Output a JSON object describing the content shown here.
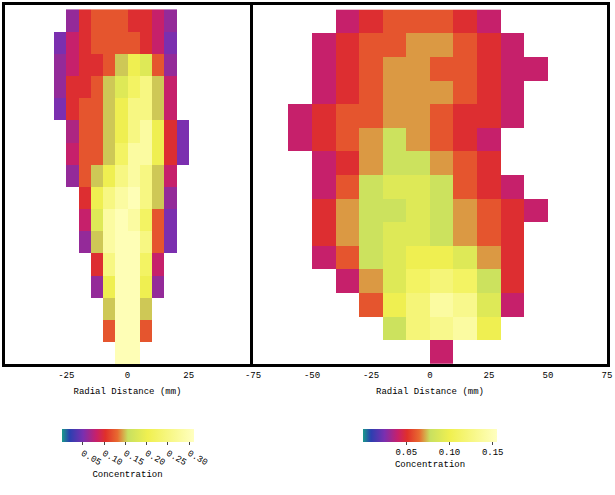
{
  "chart_data": [
    {
      "type": "heatmap",
      "x_label": "Radial Distance (mm)",
      "xlim": [
        -50,
        50
      ],
      "xticks": [
        -25,
        0,
        25
      ],
      "ylim": [
        0,
        162
      ],
      "tick_labels": "x",
      "grid": false,
      "x": [
        -47.5,
        -42.5,
        -37.5,
        -32.5,
        -27.5,
        -22.5,
        -17.5,
        -12.5,
        -7.5,
        -2.5,
        2.5,
        7.5,
        12.5,
        17.5,
        22.5,
        27.5,
        32.5,
        37.5,
        42.5,
        47.5
      ],
      "y": [
        5,
        15,
        25,
        35,
        45,
        55,
        65,
        75,
        85,
        95,
        105,
        115,
        125,
        135,
        145,
        155
      ],
      "z": [
        [
          null,
          null,
          null,
          null,
          null,
          null,
          null,
          null,
          null,
          0.3,
          0.3,
          null,
          null,
          null,
          null,
          null,
          null,
          null,
          null,
          null
        ],
        [
          null,
          null,
          null,
          null,
          null,
          null,
          null,
          null,
          0.12,
          0.3,
          0.3,
          0.12,
          null,
          null,
          null,
          null,
          null,
          null,
          null,
          null
        ],
        [
          null,
          null,
          null,
          null,
          null,
          null,
          null,
          null,
          0.15,
          0.3,
          0.3,
          0.15,
          null,
          null,
          null,
          null,
          null,
          null,
          null,
          null
        ],
        [
          null,
          null,
          null,
          null,
          null,
          null,
          null,
          0.06,
          0.2,
          0.3,
          0.3,
          0.2,
          0.06,
          null,
          null,
          null,
          null,
          null,
          null,
          null
        ],
        [
          null,
          null,
          null,
          null,
          null,
          null,
          null,
          0.1,
          0.25,
          0.3,
          0.3,
          0.22,
          0.08,
          null,
          null,
          null,
          null,
          null,
          null,
          null
        ],
        [
          null,
          null,
          null,
          null,
          null,
          null,
          0.06,
          0.15,
          0.28,
          0.3,
          0.3,
          0.25,
          0.12,
          0.05,
          null,
          null,
          null,
          null,
          null,
          null
        ],
        [
          null,
          null,
          null,
          null,
          null,
          null,
          0.08,
          0.18,
          0.28,
          0.3,
          0.28,
          0.22,
          0.12,
          0.05,
          null,
          null,
          null,
          null,
          null,
          null
        ],
        [
          null,
          null,
          null,
          null,
          null,
          null,
          0.1,
          0.2,
          0.25,
          0.28,
          0.3,
          0.25,
          0.15,
          0.06,
          null,
          null,
          null,
          null,
          null,
          null
        ],
        [
          null,
          null,
          null,
          null,
          null,
          0.06,
          0.12,
          0.15,
          0.2,
          0.25,
          0.28,
          0.25,
          0.15,
          0.08,
          null,
          null,
          null,
          null,
          null,
          null
        ],
        [
          null,
          null,
          null,
          null,
          null,
          0.08,
          0.12,
          0.12,
          0.15,
          0.22,
          0.28,
          0.28,
          0.2,
          0.1,
          0.05,
          null,
          null,
          null,
          null,
          null
        ],
        [
          null,
          null,
          null,
          null,
          null,
          0.07,
          0.12,
          0.12,
          0.15,
          0.2,
          0.25,
          0.28,
          0.2,
          0.1,
          0.05,
          null,
          null,
          null,
          null,
          null
        ],
        [
          null,
          null,
          null,
          null,
          0.05,
          0.1,
          0.12,
          0.12,
          0.15,
          0.2,
          0.25,
          0.25,
          0.15,
          0.08,
          null,
          null,
          null,
          null,
          null,
          null
        ],
        [
          null,
          null,
          null,
          null,
          0.06,
          0.1,
          0.1,
          0.12,
          0.15,
          0.18,
          0.22,
          0.25,
          0.15,
          0.08,
          null,
          null,
          null,
          null,
          null,
          null
        ],
        [
          null,
          null,
          null,
          null,
          0.06,
          0.08,
          0.1,
          0.1,
          0.12,
          0.15,
          0.2,
          0.18,
          0.12,
          0.06,
          null,
          null,
          null,
          null,
          null,
          null
        ],
        [
          null,
          null,
          null,
          null,
          0.05,
          0.08,
          0.1,
          0.12,
          0.12,
          0.12,
          0.12,
          0.1,
          0.08,
          0.05,
          null,
          null,
          null,
          null,
          null,
          null
        ],
        [
          null,
          null,
          null,
          null,
          null,
          0.06,
          0.1,
          0.12,
          0.12,
          0.12,
          0.1,
          0.1,
          0.08,
          0.06,
          null,
          null,
          null,
          null,
          null,
          null
        ]
      ],
      "colorbar": {
        "title": "Concentration",
        "range": [
          0,
          0.31
        ],
        "ticks": [
          0.05,
          {
            "value": 0.1,
            "label": "0.10"
          },
          0.15,
          {
            "value": 0.2,
            "label": "0.20"
          },
          0.25,
          {
            "value": 0.3,
            "label": "0.30"
          }
        ]
      }
    },
    {
      "type": "heatmap",
      "x_label": "Radial Distance (mm)",
      "xlim": [
        -75,
        75
      ],
      "xticks": [
        -75,
        -50,
        -25,
        0,
        25,
        50,
        75
      ],
      "ylim": [
        0,
        152
      ],
      "tick_labels": "x",
      "grid": false,
      "x": [
        -65,
        -55,
        -45,
        -35,
        -25,
        -15,
        -5,
        5,
        15,
        25,
        35,
        45,
        55,
        65
      ],
      "y": [
        5,
        15,
        25,
        35,
        45,
        55,
        65,
        75,
        85,
        95,
        105,
        115,
        125,
        135,
        145
      ],
      "z": [
        [
          null,
          null,
          null,
          null,
          null,
          null,
          null,
          0.04,
          null,
          null,
          null,
          null,
          null,
          null
        ],
        [
          null,
          null,
          null,
          null,
          null,
          0.08,
          0.12,
          0.13,
          0.14,
          0.1,
          null,
          null,
          null,
          null
        ],
        [
          null,
          null,
          null,
          null,
          0.06,
          0.1,
          0.12,
          0.14,
          0.13,
          0.09,
          0.04,
          null,
          null,
          null
        ],
        [
          null,
          null,
          null,
          0.04,
          0.07,
          0.09,
          0.11,
          0.12,
          0.11,
          0.08,
          0.05,
          null,
          null,
          null
        ],
        [
          null,
          null,
          0.04,
          0.06,
          0.08,
          0.09,
          0.1,
          0.1,
          0.09,
          0.07,
          0.05,
          null,
          null,
          null
        ],
        [
          null,
          null,
          0.05,
          0.07,
          0.08,
          0.09,
          0.09,
          0.08,
          0.07,
          0.06,
          0.05,
          null,
          null,
          null
        ],
        [
          null,
          null,
          0.05,
          0.07,
          0.08,
          0.08,
          0.09,
          0.08,
          0.07,
          0.06,
          0.05,
          0.04,
          null,
          null
        ],
        [
          null,
          null,
          0.04,
          0.06,
          0.08,
          0.09,
          0.09,
          0.08,
          0.06,
          0.05,
          0.04,
          null,
          null,
          null
        ],
        [
          null,
          null,
          0.04,
          0.05,
          0.07,
          0.08,
          0.08,
          0.07,
          0.06,
          0.05,
          null,
          null,
          null,
          null
        ],
        [
          null,
          0.04,
          0.05,
          0.06,
          0.07,
          0.08,
          0.07,
          0.06,
          0.05,
          0.04,
          null,
          null,
          null,
          null
        ],
        [
          null,
          0.04,
          0.05,
          0.06,
          0.06,
          0.07,
          0.07,
          0.06,
          0.05,
          0.05,
          0.04,
          null,
          null,
          null
        ],
        [
          null,
          null,
          0.04,
          0.05,
          0.06,
          0.07,
          0.07,
          0.07,
          0.06,
          0.05,
          0.04,
          null,
          null,
          null
        ],
        [
          null,
          null,
          0.04,
          0.05,
          0.06,
          0.07,
          0.07,
          0.06,
          0.06,
          0.05,
          0.04,
          0.04,
          null,
          null
        ],
        [
          null,
          null,
          0.04,
          0.05,
          0.06,
          0.06,
          0.07,
          0.07,
          0.06,
          0.05,
          0.04,
          null,
          null,
          null
        ],
        [
          null,
          null,
          null,
          0.04,
          0.05,
          0.06,
          0.06,
          0.06,
          0.05,
          0.04,
          null,
          null,
          null,
          null
        ]
      ],
      "colorbar": {
        "title": "Concentration",
        "range": [
          0,
          0.155
        ],
        "ticks": [
          0.05,
          {
            "value": 0.1,
            "label": "0.10"
          },
          0.15
        ]
      }
    }
  ]
}
